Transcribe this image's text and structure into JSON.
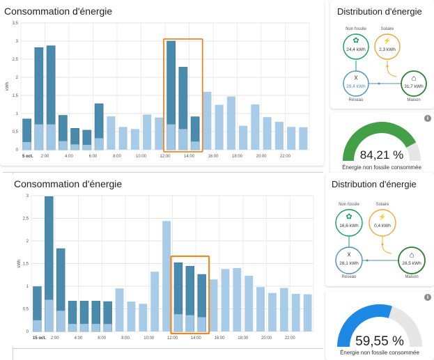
{
  "top": {
    "consumption": {
      "title": "Consommation d'énergie",
      "y_unit": "kWh",
      "date_label": "5 oct.",
      "y_ticks": [
        "0",
        "0,5",
        "1",
        "1,5",
        "2",
        "2,5",
        "3",
        "3,5"
      ],
      "x_ticks": [
        "2:00",
        "4:00",
        "6:00",
        "8:00",
        "10:00",
        "12:00",
        "14:00",
        "16:00",
        "18:00",
        "20:00",
        "22:00"
      ]
    },
    "distribution": {
      "title": "Distribution d'énergie",
      "nodes": {
        "fossil_free": {
          "label": "Non fossile",
          "value": "24,4 kWh",
          "icon": "leaf-icon"
        },
        "solar": {
          "label": "Solaire",
          "value": "2,3 kWh",
          "icon": "solar-panel-icon"
        },
        "grid": {
          "label": "Réseau",
          "value": "29,4 kWh",
          "icon": "transmission-tower-icon"
        },
        "home": {
          "label": "Maison",
          "value": "31,7 kWh",
          "icon": "home-icon"
        }
      }
    },
    "gauge": {
      "value": "84,21 %",
      "caption": "Énergie non fossile consommée",
      "fraction": 0.8421,
      "color": "#43a047"
    }
  },
  "bottom": {
    "consumption": {
      "title": "Consommation d'énergie",
      "y_unit": "kWh",
      "date_label": "15 oct.",
      "y_ticks": [
        "0",
        "0,5",
        "1",
        "1,5",
        "2",
        "2,5",
        "3"
      ],
      "x_ticks": [
        "2:00",
        "4:00",
        "6:00",
        "8:00",
        "10:00",
        "12:00",
        "14:00",
        "16:00",
        "18:00",
        "20:00",
        "22:00"
      ]
    },
    "distribution": {
      "title": "Distribution d'énergie",
      "nodes": {
        "fossil_free": {
          "label": "Non fossile",
          "value": "16,6 kWh",
          "icon": "leaf-icon"
        },
        "solar": {
          "label": "Solaire",
          "value": "0,4 kWh",
          "icon": "solar-panel-icon"
        },
        "grid": {
          "label": "Réseau",
          "value": "28,1 kWh",
          "icon": "transmission-tower-icon"
        },
        "home": {
          "label": "Maison",
          "value": "28,5 kWh",
          "icon": "home-icon"
        }
      }
    },
    "gauge": {
      "value": "59,55 %",
      "caption": "Énergie non fossile consommée",
      "fraction": 0.5955,
      "color": "#1e88e5"
    }
  },
  "colors": {
    "solar_dark": "#4a8aad",
    "solar_light": "#9fc6e4",
    "grid_bar": "#a8cbe7",
    "highlight": "#e8892b",
    "fossil_free": "#0f9d58",
    "solar_node": "#f0a82f",
    "grid_node": "#4a90b8",
    "home_node": "#2e7d32"
  },
  "chart_data": [
    {
      "type": "bar",
      "title": "Consommation d'énergie",
      "ylabel": "kWh",
      "ylim": [
        0,
        3.5
      ],
      "grid": true,
      "categories": [
        "0:00",
        "1:00",
        "2:00",
        "3:00",
        "4:00",
        "5:00",
        "6:00",
        "7:00",
        "8:00",
        "9:00",
        "10:00",
        "11:00",
        "12:00",
        "13:00",
        "14:00",
        "15:00",
        "16:00",
        "17:00",
        "18:00",
        "19:00",
        "20:00",
        "21:00",
        "22:00",
        "23:00"
      ],
      "series": [
        {
          "values": [
            0.85,
            2.82,
            2.87,
            0.95,
            0.59,
            0.54,
            1.27,
            0,
            0,
            0,
            0,
            0,
            3.0,
            2.28,
            0.91,
            0,
            0,
            0,
            0,
            0,
            0,
            0,
            0,
            0
          ]
        },
        {
          "values": [
            0,
            0,
            0,
            0,
            0,
            0,
            0,
            0.92,
            0.63,
            0.57,
            0.97,
            0.89,
            0,
            0,
            0,
            1.6,
            1.24,
            1.47,
            0.66,
            1.25,
            0.9,
            0.77,
            0.63,
            0.62
          ]
        }
      ]
    },
    {
      "type": "bar",
      "title": "Consommation d'énergie",
      "ylabel": "kWh",
      "ylim": [
        0,
        3
      ],
      "grid": true,
      "categories": [
        "0:00",
        "1:00",
        "2:00",
        "3:00",
        "4:00",
        "5:00",
        "6:00",
        "7:00",
        "8:00",
        "9:00",
        "10:00",
        "11:00",
        "12:00",
        "13:00",
        "14:00",
        "15:00",
        "16:00",
        "17:00",
        "18:00",
        "19:00",
        "20:00",
        "21:00",
        "22:00",
        "23:00"
      ],
      "series": [
        {
          "values": [
            0.99,
            2.98,
            1.83,
            0.67,
            0.67,
            0.67,
            0.66,
            0,
            0,
            0,
            0,
            0,
            1.52,
            1.44,
            1.26,
            0,
            0,
            0,
            0,
            0,
            0,
            0,
            0,
            0
          ]
        },
        {
          "values": [
            0,
            0,
            0,
            0,
            0,
            0,
            0,
            0.95,
            0.66,
            0.61,
            1.32,
            2.44,
            0,
            0,
            0,
            1.15,
            1.38,
            1.4,
            1.23,
            0.98,
            0.85,
            0.96,
            0.83,
            0.82
          ]
        }
      ]
    }
  ]
}
